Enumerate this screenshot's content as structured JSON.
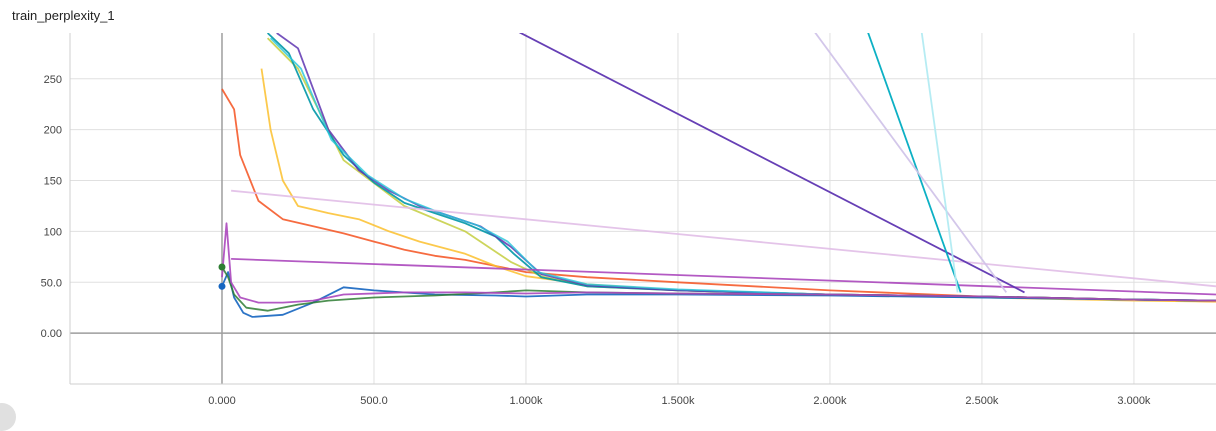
{
  "chart_data": {
    "type": "line",
    "title": "train_perplexity_1",
    "xlabel": "",
    "ylabel": "",
    "xlim": [
      -500,
      3270
    ],
    "ylim": [
      -50,
      295
    ],
    "grid": true,
    "legend": "none",
    "x_ticks": [
      0,
      500,
      1000,
      1500,
      2000,
      2500,
      3000
    ],
    "x_tick_labels": [
      "0.000",
      "500.0",
      "1.000k",
      "1.500k",
      "2.000k",
      "2.500k",
      "3.000k"
    ],
    "y_ticks": [
      0,
      50,
      100,
      150,
      200,
      250
    ],
    "y_tick_labels": [
      "0.00",
      "50.0",
      "100",
      "150",
      "200",
      "250"
    ],
    "series": [
      {
        "color": "#f4511e",
        "opacity": 0.85,
        "points": [
          [
            0,
            240
          ],
          [
            40,
            220
          ],
          [
            60,
            175
          ],
          [
            120,
            130
          ],
          [
            200,
            112
          ],
          [
            300,
            105
          ],
          [
            400,
            98
          ],
          [
            500,
            90
          ],
          [
            600,
            82
          ],
          [
            700,
            76
          ],
          [
            800,
            72
          ],
          [
            900,
            66
          ],
          [
            1000,
            60
          ],
          [
            1200,
            55
          ],
          [
            1500,
            50
          ],
          [
            2000,
            42
          ],
          [
            2500,
            36
          ],
          [
            3000,
            33
          ],
          [
            3270,
            31
          ]
        ]
      },
      {
        "color": "#fbc02d",
        "opacity": 0.85,
        "points": [
          [
            130,
            260
          ],
          [
            160,
            200
          ],
          [
            200,
            150
          ],
          [
            250,
            125
          ],
          [
            350,
            118
          ],
          [
            450,
            112
          ],
          [
            550,
            100
          ],
          [
            650,
            90
          ],
          [
            800,
            78
          ],
          [
            900,
            66
          ],
          [
            1000,
            56
          ],
          [
            1200,
            48
          ],
          [
            1500,
            42
          ],
          [
            2000,
            38
          ],
          [
            2500,
            35
          ],
          [
            3000,
            32
          ],
          [
            3270,
            31
          ]
        ]
      },
      {
        "color": "#c0ca33",
        "opacity": 0.8,
        "points": [
          [
            150,
            290
          ],
          [
            250,
            260
          ],
          [
            400,
            170
          ],
          [
            600,
            125
          ],
          [
            800,
            100
          ],
          [
            950,
            70
          ],
          [
            1050,
            56
          ],
          [
            1200,
            46
          ],
          [
            1500,
            42
          ],
          [
            2000,
            38
          ],
          [
            2500,
            36
          ],
          [
            3000,
            33
          ],
          [
            3270,
            32
          ]
        ]
      },
      {
        "color": "#0097a7",
        "opacity": 0.9,
        "points": [
          [
            150,
            295
          ],
          [
            220,
            275
          ],
          [
            300,
            220
          ],
          [
            400,
            175
          ],
          [
            500,
            148
          ],
          [
            600,
            128
          ],
          [
            700,
            118
          ],
          [
            800,
            108
          ],
          [
            900,
            95
          ],
          [
            960,
            78
          ],
          [
            1050,
            55
          ],
          [
            1200,
            46
          ],
          [
            1500,
            42
          ],
          [
            2000,
            38
          ],
          [
            2500,
            36
          ],
          [
            3000,
            33
          ],
          [
            3270,
            32
          ]
        ]
      },
      {
        "color": "#5e35b1",
        "opacity": 0.85,
        "points": [
          [
            180,
            295
          ],
          [
            250,
            280
          ],
          [
            350,
            200
          ],
          [
            450,
            160
          ],
          [
            550,
            140
          ],
          [
            650,
            125
          ],
          [
            750,
            115
          ],
          [
            850,
            105
          ],
          [
            950,
            85
          ],
          [
            1050,
            58
          ],
          [
            1200,
            47
          ],
          [
            1500,
            42
          ],
          [
            2000,
            38
          ],
          [
            2500,
            36
          ],
          [
            3000,
            33
          ],
          [
            3270,
            32
          ]
        ]
      },
      {
        "color": "#26c6da",
        "opacity": 0.8,
        "points": [
          [
            160,
            290
          ],
          [
            260,
            260
          ],
          [
            360,
            190
          ],
          [
            480,
            155
          ],
          [
            600,
            132
          ],
          [
            720,
            118
          ],
          [
            840,
            106
          ],
          [
            940,
            90
          ],
          [
            1040,
            60
          ],
          [
            1200,
            48
          ],
          [
            1500,
            43
          ],
          [
            2000,
            38
          ],
          [
            2500,
            35
          ],
          [
            3000,
            33
          ],
          [
            3270,
            32
          ]
        ]
      },
      {
        "color": "#1565c0",
        "opacity": 0.9,
        "points": [
          [
            0,
            46
          ],
          [
            20,
            60
          ],
          [
            40,
            35
          ],
          [
            70,
            20
          ],
          [
            100,
            16
          ],
          [
            200,
            18
          ],
          [
            300,
            30
          ],
          [
            400,
            45
          ],
          [
            500,
            42
          ],
          [
            700,
            38
          ],
          [
            900,
            37
          ],
          [
            1000,
            36
          ],
          [
            1200,
            38
          ],
          [
            1500,
            38
          ],
          [
            2000,
            37
          ],
          [
            2500,
            35
          ],
          [
            3000,
            33
          ],
          [
            3270,
            32
          ]
        ]
      },
      {
        "color": "#2e7d32",
        "opacity": 0.85,
        "points": [
          [
            0,
            65
          ],
          [
            20,
            55
          ],
          [
            40,
            38
          ],
          [
            80,
            25
          ],
          [
            150,
            22
          ],
          [
            250,
            28
          ],
          [
            350,
            32
          ],
          [
            500,
            35
          ],
          [
            700,
            37
          ],
          [
            900,
            40
          ],
          [
            1000,
            42
          ],
          [
            1200,
            40
          ],
          [
            1500,
            39
          ],
          [
            2000,
            38
          ],
          [
            2500,
            36
          ],
          [
            3000,
            33
          ],
          [
            3270,
            32
          ]
        ]
      },
      {
        "color": "#ab47bc",
        "opacity": 0.9,
        "points": [
          [
            0,
            55
          ],
          [
            15,
            108
          ],
          [
            30,
            50
          ],
          [
            60,
            35
          ],
          [
            120,
            30
          ],
          [
            200,
            30
          ],
          [
            300,
            32
          ],
          [
            400,
            38
          ],
          [
            600,
            40
          ],
          [
            800,
            40
          ],
          [
            1000,
            39
          ],
          [
            1200,
            40
          ],
          [
            1500,
            39
          ],
          [
            2000,
            38
          ],
          [
            2500,
            36
          ],
          [
            3000,
            33
          ],
          [
            3270,
            32
          ]
        ]
      },
      {
        "color": "#ab47bc",
        "opacity": 0.9,
        "points": [
          [
            30,
            73
          ],
          [
            3270,
            38
          ]
        ]
      },
      {
        "color": "#e1bee7",
        "opacity": 0.9,
        "points": [
          [
            30,
            140
          ],
          [
            3270,
            46
          ]
        ]
      },
      {
        "color": "#5e35b1",
        "opacity": 0.95,
        "points": [
          [
            950,
            300
          ],
          [
            2640,
            40
          ]
        ]
      },
      {
        "color": "#00acc1",
        "opacity": 0.95,
        "points": [
          [
            2120,
            300
          ],
          [
            2430,
            40
          ]
        ]
      },
      {
        "color": "#d1c4e9",
        "opacity": 0.95,
        "points": [
          [
            1940,
            300
          ],
          [
            2580,
            40
          ]
        ]
      },
      {
        "color": "#b2ebf2",
        "opacity": 0.95,
        "points": [
          [
            2300,
            300
          ],
          [
            2420,
            40
          ]
        ]
      }
    ]
  }
}
